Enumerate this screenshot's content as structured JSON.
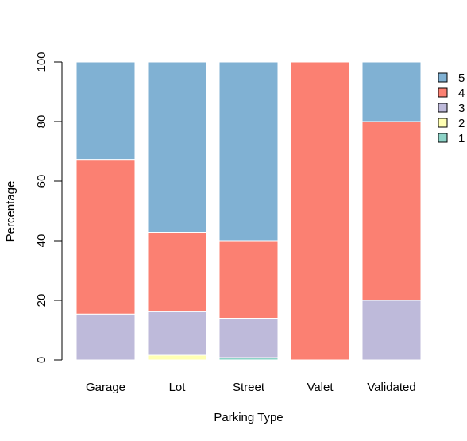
{
  "chart_data": {
    "type": "bar",
    "stacked": true,
    "categories": [
      "Garage",
      "Lot",
      "Street",
      "Valet",
      "Validated"
    ],
    "xlabel": "Parking Type",
    "ylabel": "Percentage",
    "ylim": [
      0,
      100
    ],
    "yticks": [
      "0",
      "20",
      "40",
      "60",
      "80",
      "100"
    ],
    "grid": false,
    "legend_position": "right",
    "series": [
      {
        "name": "1",
        "color": "#8DD3C7",
        "values": [
          0,
          0,
          0.8,
          0,
          0
        ]
      },
      {
        "name": "2",
        "color": "#FFFFB3",
        "values": [
          0,
          1.6,
          0,
          0,
          0
        ]
      },
      {
        "name": "3",
        "color": "#BEBADA",
        "values": [
          15.4,
          14.6,
          13.2,
          0,
          20
        ]
      },
      {
        "name": "4",
        "color": "#FB8072",
        "values": [
          51.9,
          26.6,
          26,
          100,
          60
        ]
      },
      {
        "name": "5",
        "color": "#80B1D3",
        "values": [
          32.7,
          57.2,
          60,
          0,
          20
        ]
      }
    ]
  }
}
